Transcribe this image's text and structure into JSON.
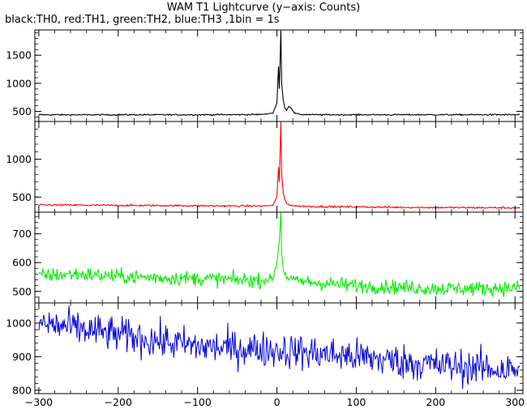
{
  "title": "WAM T1 Lightcurve (y−axis: Counts)",
  "subtitle": "black:TH0, red:TH1, green:TH2, blue:TH3 ,1bin = 1s",
  "chart_data": [
    {
      "type": "line",
      "name": "",
      "color": "#000000",
      "ylim": [
        320,
        1950
      ],
      "yticks": [
        500,
        1000,
        1500
      ],
      "xlim": [
        -305,
        310
      ],
      "baseline": 440,
      "noise": 22,
      "trend": 0,
      "peak_x": 5,
      "peak_y": 1940,
      "x": [
        -300,
        -250,
        -200,
        -150,
        -100,
        -50,
        -20,
        -5,
        0,
        2,
        3,
        5,
        6,
        8,
        10,
        12,
        15,
        18,
        22,
        30,
        50,
        100,
        150,
        200,
        250,
        300
      ],
      "y": [
        440,
        438,
        440,
        439,
        440,
        441,
        445,
        470,
        650,
        1300,
        900,
        1940,
        1000,
        700,
        560,
        520,
        590,
        560,
        470,
        445,
        440,
        440,
        440,
        440,
        440,
        440
      ]
    },
    {
      "type": "line",
      "name": "",
      "color": "#ff0000",
      "ylim": [
        300,
        1500
      ],
      "yticks": [
        500,
        1000
      ],
      "xlim": [
        -305,
        310
      ],
      "baseline": 380,
      "noise": 22,
      "trend": -40,
      "peak_x": 5,
      "peak_y": 1500,
      "x": [
        -300,
        -250,
        -200,
        -150,
        -100,
        -50,
        -20,
        -5,
        0,
        2,
        3,
        5,
        6,
        8,
        10,
        12,
        15,
        20,
        30,
        50,
        100,
        150,
        200,
        250,
        300
      ],
      "y": [
        395,
        393,
        390,
        388,
        385,
        382,
        382,
        390,
        500,
        900,
        700,
        1500,
        800,
        550,
        470,
        420,
        400,
        385,
        380,
        375,
        370,
        365,
        362,
        360,
        358
      ]
    },
    {
      "type": "line",
      "name": "",
      "color": "#00ee00",
      "ylim": [
        460,
        775
      ],
      "yticks": [
        500,
        600,
        700
      ],
      "xlim": [
        -305,
        310
      ],
      "baseline": 545,
      "noise": 45,
      "trend": -55,
      "peak_x": 5,
      "peak_y": 775,
      "x": [
        -300,
        -250,
        -200,
        -150,
        -100,
        -50,
        -20,
        -5,
        0,
        3,
        5,
        6,
        8,
        10,
        15,
        30,
        50,
        100,
        150,
        200,
        250,
        300
      ],
      "y": [
        555,
        560,
        552,
        548,
        545,
        540,
        538,
        545,
        600,
        680,
        775,
        640,
        580,
        560,
        545,
        535,
        530,
        520,
        515,
        510,
        510,
        512
      ]
    },
    {
      "type": "line",
      "name": "",
      "color": "#0000dd",
      "ylim": [
        790,
        1060
      ],
      "yticks": [
        800,
        900,
        1000
      ],
      "xlim": [
        -305,
        310
      ],
      "baseline": 945,
      "noise": 95,
      "trend": -110,
      "x": [
        -300,
        -200,
        -100,
        0,
        100,
        200,
        300
      ],
      "y": [
        1000,
        965,
        930,
        920,
        900,
        875,
        860
      ]
    }
  ],
  "x_axis": {
    "ticks": [
      -300,
      -200,
      -100,
      0,
      100,
      200,
      300
    ],
    "tick_labels": [
      "−300",
      "−200",
      "−100",
      "0",
      "100",
      "200",
      "300"
    ]
  }
}
